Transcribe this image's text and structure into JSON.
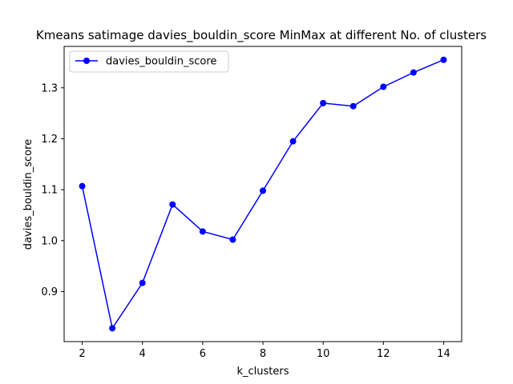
{
  "chart_data": {
    "type": "line",
    "title": "Kmeans satimage davies_bouldin_score MinMax at different No. of clusters",
    "xlabel": "k_clusters",
    "ylabel": "davies_bouldin_score",
    "x": [
      2,
      3,
      4,
      5,
      6,
      7,
      8,
      9,
      10,
      11,
      12,
      13,
      14
    ],
    "series": [
      {
        "name": "davies_bouldin_score",
        "color": "#0000ff",
        "marker": "circle",
        "values": [
          1.107,
          0.828,
          0.917,
          1.071,
          1.018,
          1.002,
          1.098,
          1.195,
          1.27,
          1.264,
          1.302,
          1.33,
          1.355
        ]
      }
    ],
    "xlim": [
      1.4,
      14.6
    ],
    "ylim": [
      0.8018,
      1.3813
    ],
    "xticks": [
      2,
      4,
      6,
      8,
      10,
      12,
      14
    ],
    "yticks": [
      0.9,
      1.0,
      1.1,
      1.2,
      1.3
    ],
    "ytick_labels": [
      "0.9",
      "1.0",
      "1.1",
      "1.2",
      "1.3"
    ],
    "grid": false,
    "legend_position": "top-left"
  }
}
